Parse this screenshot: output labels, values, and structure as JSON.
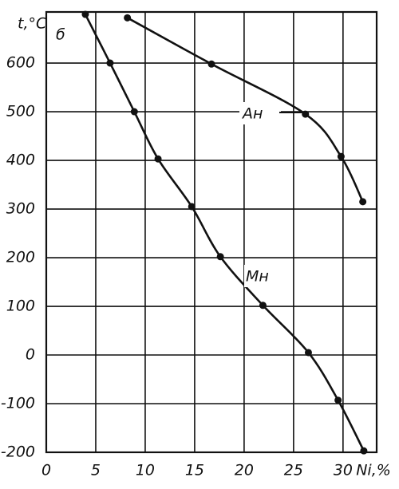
{
  "chart_data": {
    "type": "line",
    "annotation": "б",
    "x_label": "Ni,%",
    "y_label": "t,°C",
    "xlim": [
      0,
      33.4
    ],
    "xticks": [
      0,
      5,
      10,
      15,
      20,
      25,
      30
    ],
    "ylim": [
      -200,
      705
    ],
    "yticks": [
      -200,
      -100,
      0,
      100,
      200,
      300,
      400,
      500,
      600
    ],
    "grid": true,
    "series": [
      {
        "name": "Aн",
        "color": "#111111",
        "x": [
          8.2,
          16.7,
          26.2,
          29.8,
          32.0
        ],
        "values": [
          693,
          598,
          495,
          408,
          315
        ]
      },
      {
        "name": "Mн",
        "color": "#111111",
        "x": [
          3.95,
          6.45,
          8.9,
          11.3,
          14.7,
          17.6,
          21.9,
          26.5,
          29.5,
          32.1
        ],
        "values": [
          700,
          600,
          500,
          403,
          305,
          202,
          102,
          5,
          -93,
          -197
        ]
      }
    ]
  }
}
